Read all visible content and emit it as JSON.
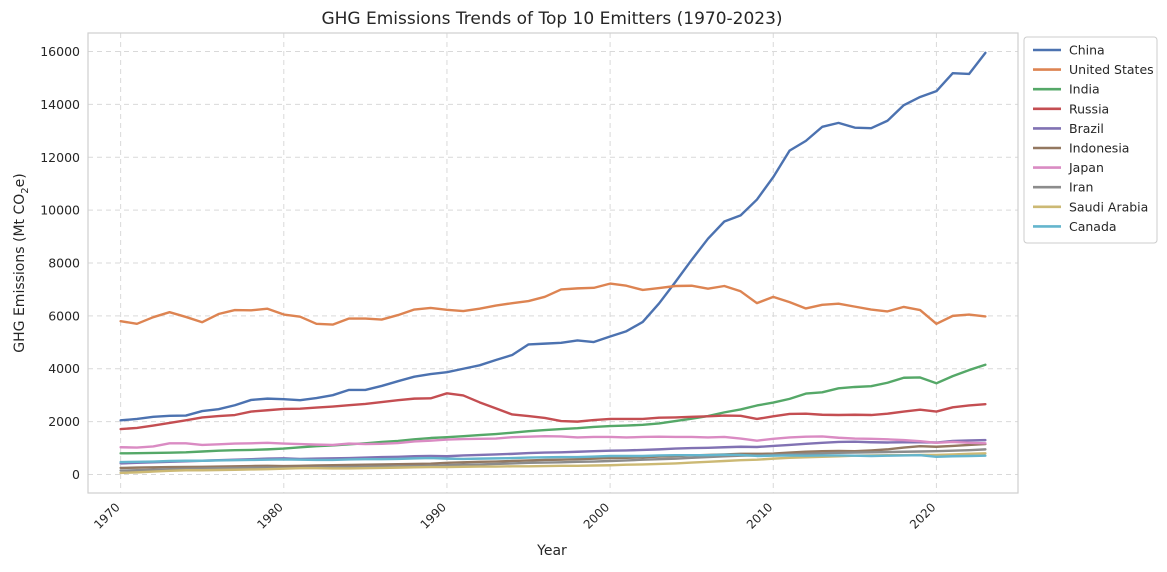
{
  "chart_data": {
    "type": "line",
    "title": "GHG Emissions Trends of Top 10 Emitters (1970-2023)",
    "xlabel": "Year",
    "ylabel_main": "GHG Emissions (Mt CO",
    "ylabel_sub": "2",
    "ylabel_end": "e)",
    "xlim": [
      1968,
      2025
    ],
    "ylim": [
      -700,
      16700
    ],
    "xticks": [
      1970,
      1980,
      1990,
      2000,
      2010,
      2020
    ],
    "yticks": [
      0,
      2000,
      4000,
      6000,
      8000,
      10000,
      12000,
      14000,
      16000
    ],
    "grid": true,
    "legend_position": "outside-top-right",
    "x": [
      1970,
      1971,
      1972,
      1973,
      1974,
      1975,
      1976,
      1977,
      1978,
      1979,
      1980,
      1981,
      1982,
      1983,
      1984,
      1985,
      1986,
      1987,
      1988,
      1989,
      1990,
      1991,
      1992,
      1993,
      1994,
      1995,
      1996,
      1997,
      1998,
      1999,
      2000,
      2001,
      2002,
      2003,
      2004,
      2005,
      2006,
      2007,
      2008,
      2009,
      2010,
      2011,
      2012,
      2013,
      2014,
      2015,
      2016,
      2017,
      2018,
      2019,
      2020,
      2021,
      2022,
      2023
    ],
    "series": [
      {
        "name": "China",
        "color": "#4c72b0",
        "values": [
          2050,
          2100,
          2180,
          2220,
          2230,
          2400,
          2470,
          2620,
          2820,
          2870,
          2850,
          2810,
          2890,
          3000,
          3200,
          3200,
          3350,
          3530,
          3700,
          3800,
          3870,
          4000,
          4130,
          4330,
          4520,
          4920,
          4950,
          4980,
          5070,
          5010,
          5220,
          5420,
          5770,
          6470,
          7280,
          8120,
          8920,
          9570,
          9800,
          10400,
          11250,
          12250,
          12620,
          13150,
          13300,
          13120,
          13100,
          13380,
          13970,
          14280,
          14500,
          15180,
          15150,
          15950
        ]
      },
      {
        "name": "United States",
        "color": "#dd8452",
        "values": [
          5800,
          5700,
          5950,
          6140,
          5960,
          5760,
          6070,
          6220,
          6210,
          6270,
          6050,
          5970,
          5700,
          5670,
          5900,
          5900,
          5860,
          6030,
          6240,
          6300,
          6230,
          6180,
          6270,
          6390,
          6480,
          6560,
          6720,
          7000,
          7040,
          7060,
          7220,
          7140,
          6980,
          7050,
          7130,
          7140,
          7030,
          7130,
          6930,
          6480,
          6720,
          6520,
          6280,
          6420,
          6460,
          6350,
          6240,
          6170,
          6340,
          6220,
          5700,
          6000,
          6050,
          5980
        ]
      },
      {
        "name": "India",
        "color": "#55a868",
        "values": [
          800,
          805,
          815,
          825,
          840,
          870,
          900,
          920,
          930,
          950,
          980,
          1030,
          1070,
          1100,
          1140,
          1180,
          1230,
          1270,
          1330,
          1380,
          1410,
          1450,
          1490,
          1530,
          1580,
          1640,
          1680,
          1720,
          1750,
          1800,
          1830,
          1850,
          1880,
          1930,
          2020,
          2110,
          2210,
          2350,
          2460,
          2610,
          2720,
          2860,
          3060,
          3110,
          3260,
          3310,
          3340,
          3470,
          3660,
          3670,
          3450,
          3720,
          3950,
          4150
        ]
      },
      {
        "name": "Russia",
        "color": "#c44e52",
        "values": [
          1720,
          1760,
          1850,
          1950,
          2050,
          2160,
          2210,
          2250,
          2380,
          2430,
          2480,
          2490,
          2530,
          2570,
          2620,
          2670,
          2740,
          2810,
          2870,
          2880,
          3070,
          2990,
          2730,
          2500,
          2270,
          2210,
          2140,
          2020,
          2000,
          2060,
          2100,
          2100,
          2100,
          2150,
          2160,
          2180,
          2200,
          2230,
          2220,
          2100,
          2200,
          2290,
          2300,
          2260,
          2250,
          2260,
          2250,
          2300,
          2380,
          2450,
          2380,
          2540,
          2610,
          2660
        ]
      },
      {
        "name": "Brazil",
        "color": "#8172b3",
        "values": [
          420,
          440,
          460,
          480,
          500,
          520,
          540,
          560,
          580,
          600,
          610,
          590,
          600,
          610,
          620,
          640,
          660,
          670,
          690,
          700,
          690,
          720,
          740,
          760,
          780,
          810,
          830,
          840,
          860,
          880,
          900,
          910,
          930,
          950,
          980,
          1000,
          1010,
          1030,
          1050,
          1040,
          1080,
          1120,
          1160,
          1200,
          1230,
          1240,
          1220,
          1210,
          1220,
          1220,
          1210,
          1270,
          1290,
          1300
        ]
      },
      {
        "name": "Indonesia",
        "color": "#937860",
        "values": [
          250,
          260,
          270,
          280,
          285,
          290,
          300,
          310,
          320,
          330,
          320,
          330,
          340,
          350,
          360,
          370,
          380,
          390,
          400,
          410,
          440,
          460,
          480,
          490,
          510,
          530,
          550,
          560,
          580,
          600,
          620,
          630,
          650,
          680,
          700,
          720,
          740,
          760,
          780,
          780,
          790,
          830,
          860,
          880,
          890,
          880,
          910,
          950,
          1020,
          1070,
          1050,
          1080,
          1120,
          1150
        ]
      },
      {
        "name": "Japan",
        "color": "#da8bc3",
        "values": [
          1030,
          1020,
          1060,
          1180,
          1180,
          1120,
          1140,
          1170,
          1180,
          1200,
          1170,
          1150,
          1130,
          1120,
          1170,
          1150,
          1160,
          1190,
          1250,
          1280,
          1320,
          1340,
          1350,
          1360,
          1410,
          1430,
          1450,
          1440,
          1400,
          1420,
          1420,
          1400,
          1420,
          1430,
          1420,
          1420,
          1400,
          1420,
          1360,
          1280,
          1350,
          1400,
          1430,
          1440,
          1390,
          1360,
          1350,
          1330,
          1300,
          1260,
          1200,
          1230,
          1200,
          1180
        ]
      },
      {
        "name": "Iran",
        "color": "#8c8c8c",
        "values": [
          150,
          160,
          180,
          200,
          215,
          225,
          240,
          250,
          255,
          260,
          250,
          250,
          260,
          270,
          280,
          290,
          300,
          310,
          320,
          330,
          350,
          370,
          380,
          400,
          420,
          440,
          450,
          460,
          480,
          490,
          510,
          530,
          560,
          580,
          600,
          630,
          660,
          690,
          710,
          720,
          740,
          760,
          780,
          800,
          820,
          830,
          840,
          850,
          860,
          870,
          880,
          900,
          920,
          950
        ]
      },
      {
        "name": "Saudi Arabia",
        "color": "#ccb974",
        "values": [
          60,
          80,
          110,
          140,
          160,
          160,
          170,
          180,
          190,
          200,
          220,
          240,
          240,
          230,
          230,
          240,
          250,
          260,
          270,
          280,
          280,
          290,
          300,
          300,
          310,
          310,
          320,
          330,
          330,
          340,
          350,
          370,
          380,
          400,
          420,
          450,
          480,
          510,
          540,
          560,
          600,
          630,
          650,
          670,
          690,
          710,
          720,
          730,
          730,
          740,
          740,
          760,
          780,
          800
        ]
      },
      {
        "name": "Canada",
        "color": "#64b5cd",
        "values": [
          470,
          480,
          490,
          510,
          520,
          520,
          530,
          540,
          550,
          560,
          570,
          560,
          550,
          550,
          570,
          580,
          580,
          590,
          610,
          620,
          600,
          590,
          600,
          610,
          620,
          640,
          650,
          660,
          660,
          680,
          700,
          700,
          700,
          720,
          730,
          730,
          730,
          750,
          740,
          700,
          710,
          720,
          710,
          720,
          720,
          710,
          700,
          710,
          720,
          730,
          670,
          690,
          700,
          710
        ]
      }
    ]
  }
}
